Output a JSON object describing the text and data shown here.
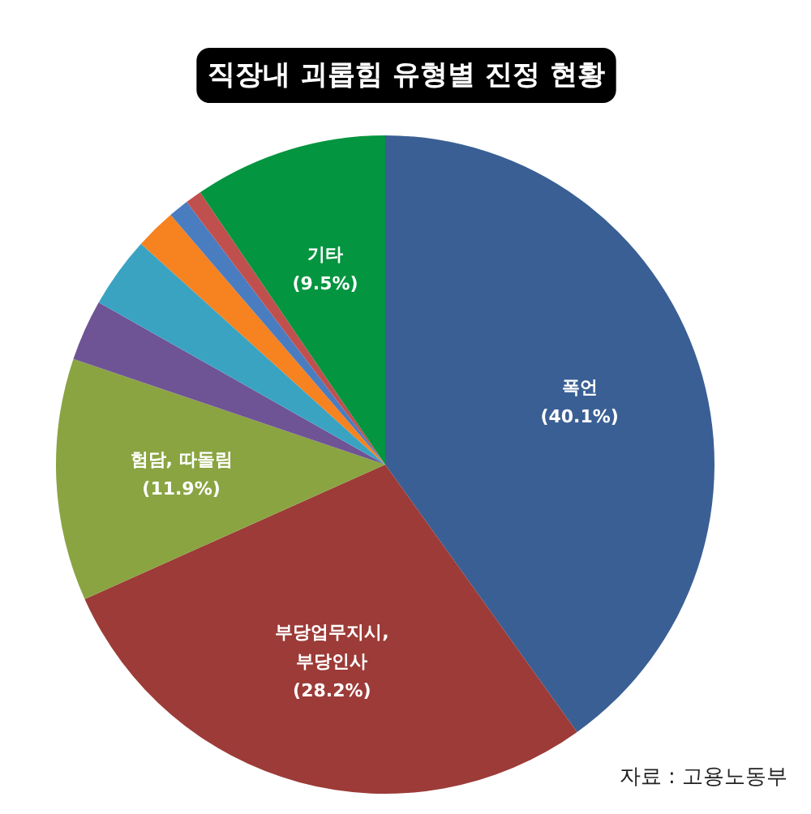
{
  "chart_data": {
    "type": "pie",
    "title": "직장내 괴롭힘 유형별 진정 현황",
    "categories": [
      "폭언",
      "부당업무지시,\n부당인사",
      "험담, 따돌림",
      null,
      null,
      null,
      null,
      null,
      "기타"
    ],
    "values": [
      40.1,
      28.2,
      11.9,
      3.0,
      3.5,
      2.0,
      1.0,
      0.8,
      9.5
    ],
    "value_labels": [
      "(40.1%)",
      "(28.2%)",
      "(11.9%)",
      null,
      null,
      null,
      null,
      null,
      "(9.5%)"
    ],
    "colors": [
      "#3a5f94",
      "#9c3b37",
      "#8aa442",
      "#6e5395",
      "#3aa3c2",
      "#f68220",
      "#4a7cc0",
      "#c0504d",
      "#03953f"
    ],
    "annotations": [
      "자료 : 고용노동부"
    ]
  }
}
